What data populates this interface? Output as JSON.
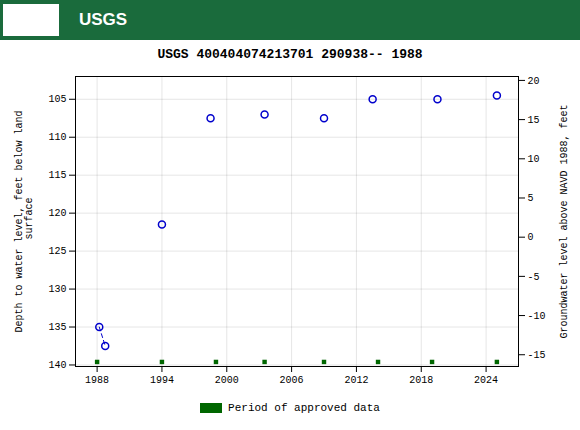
{
  "chart_data": {
    "type": "scatter",
    "title": "USGS 400404074213701 290938-- 1988",
    "annotations": [
      "USGS"
    ],
    "ylabel": "Depth to water level, feet below land\n surface",
    "y2label": "Groundwater level above NAVD 1988, feet",
    "xlim": [
      1986,
      2027
    ],
    "xticks": [
      1988,
      1994,
      2000,
      2006,
      2012,
      2018,
      2024
    ],
    "ylim": [
      140.2,
      102.0
    ],
    "yticks": [
      105,
      110,
      115,
      120,
      125,
      130,
      135,
      140
    ],
    "y2lim": [
      -16.5,
      20.5
    ],
    "y2ticks": [
      -15,
      -10,
      -5,
      0,
      5,
      10,
      15,
      20
    ],
    "grid": true,
    "legend": "bottom",
    "series": [
      {
        "type": "scatter",
        "x": [
          1988.2,
          1988.75,
          1994.0,
          1998.5,
          2003.5,
          2009.0,
          2013.5,
          2019.5,
          2025.0
        ],
        "values": [
          135.0,
          137.5,
          121.5,
          107.5,
          107.0,
          107.5,
          105.0,
          105.0,
          104.5
        ],
        "color": "#0000cc",
        "marker": "circle"
      },
      {
        "type": "line",
        "x": [
          1988.2,
          1988.75
        ],
        "values": [
          135.0,
          137.5
        ],
        "color": "#0000cc",
        "line_style": "dashed"
      },
      {
        "name": "Period of approved data",
        "type": "scatter",
        "x": [
          1988.0,
          1994.0,
          1999.0,
          2003.5,
          2009.0,
          2014.0,
          2019.0,
          2025.0
        ],
        "values": [
          139.6,
          139.6,
          139.6,
          139.6,
          139.6,
          139.6,
          139.6,
          139.6
        ],
        "color": "#006600",
        "marker": "square"
      }
    ]
  }
}
